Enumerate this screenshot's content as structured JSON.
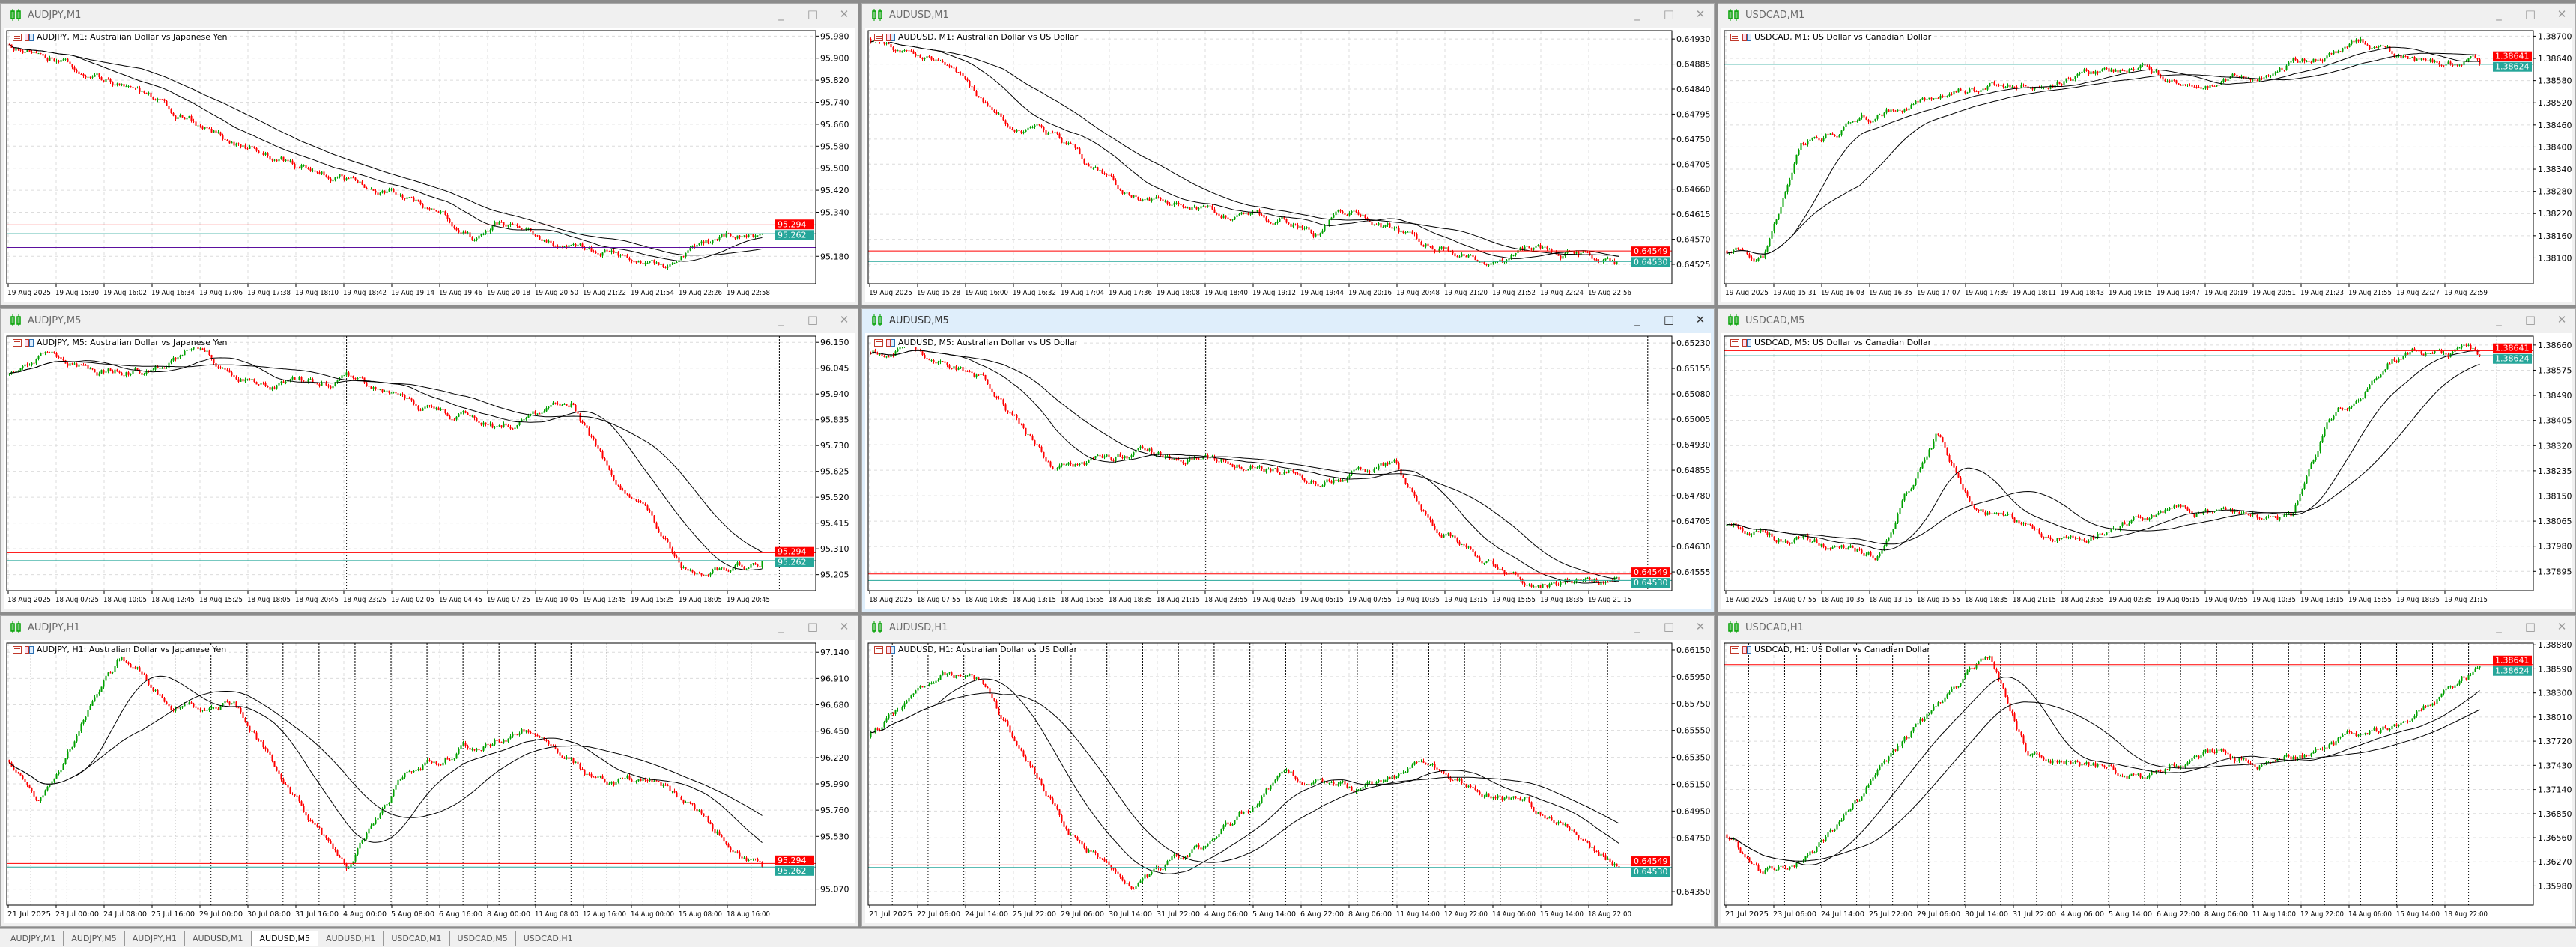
{
  "colors": {
    "bull": "#00a000",
    "bear": "#ff0000",
    "ask_line": "#ff0000",
    "bid_line": "#26a69a",
    "ma": "#000000",
    "grid": "#dcdcdc",
    "extra_line": "#5b0f9e"
  },
  "window_buttons": {
    "minimize": "_",
    "maximize": "□",
    "close": "✕"
  },
  "tabs": {
    "active": 4,
    "items": [
      {
        "label": "AUDJPY,M1"
      },
      {
        "label": "AUDJPY,M5"
      },
      {
        "label": "AUDJPY,H1"
      },
      {
        "label": "AUDUSD,M1"
      },
      {
        "label": "AUDUSD,M5"
      },
      {
        "label": "AUDUSD,H1"
      },
      {
        "label": "USDCAD,M1"
      },
      {
        "label": "USDCAD,M5"
      },
      {
        "label": "USDCAD,H1"
      }
    ]
  },
  "chart_data": [
    {
      "type": "candlestick",
      "window_title": "AUDJPY,M1",
      "header": "AUDJPY, M1:  Australian Dollar vs Japanese Yen",
      "digits": 3,
      "ylim": [
        95.08,
        96.0
      ],
      "ticks": [
        95.98,
        95.9,
        95.82,
        95.74,
        95.66,
        95.58,
        95.5,
        95.42,
        95.34,
        95.18
      ],
      "ask": 95.294,
      "bid": 95.262,
      "ask_label": "95.294",
      "bid_label": "95.262",
      "extra_line": 95.212,
      "time_labels": [
        "19 Aug 2025",
        "19 Aug 15:30",
        "19 Aug 16:02",
        "19 Aug 16:34",
        "19 Aug 17:06",
        "19 Aug 17:38",
        "19 Aug 18:10",
        "19 Aug 18:42",
        "19 Aug 19:14",
        "19 Aug 19:46",
        "19 Aug 20:18",
        "19 Aug 20:50",
        "19 Aug 21:22",
        "19 Aug 21:54",
        "19 Aug 22:26",
        "19 Aug 22:58"
      ],
      "separators": [],
      "path": [
        [
          0,
          95.95
        ],
        [
          0.05,
          95.92
        ],
        [
          0.15,
          95.8
        ],
        [
          0.28,
          95.62
        ],
        [
          0.4,
          95.5
        ],
        [
          0.5,
          95.42
        ],
        [
          0.58,
          95.32
        ],
        [
          0.62,
          95.25
        ],
        [
          0.65,
          95.29
        ],
        [
          0.75,
          95.2
        ],
        [
          0.83,
          95.18
        ],
        [
          0.87,
          95.15
        ],
        [
          0.92,
          95.21
        ],
        [
          0.97,
          95.27
        ],
        [
          1,
          95.26
        ]
      ]
    },
    {
      "type": "candlestick",
      "window_title": "AUDUSD,M1",
      "header": "AUDUSD, M1:  Australian Dollar vs US Dollar",
      "digits": 5,
      "ylim": [
        0.6449,
        0.64945
      ],
      "ticks": [
        0.6493,
        0.64885,
        0.6484,
        0.64795,
        0.6475,
        0.64705,
        0.6466,
        0.64615,
        0.6457,
        0.64525
      ],
      "ask": 0.64549,
      "bid": 0.6453,
      "ask_label": "0.64549",
      "bid_label": "0.64530",
      "time_labels": [
        "19 Aug 2025",
        "19 Aug 15:28",
        "19 Aug 16:00",
        "19 Aug 16:32",
        "19 Aug 17:04",
        "19 Aug 17:36",
        "19 Aug 18:08",
        "19 Aug 18:40",
        "19 Aug 19:12",
        "19 Aug 19:44",
        "19 Aug 20:16",
        "19 Aug 20:48",
        "19 Aug 21:20",
        "19 Aug 21:52",
        "19 Aug 22:24",
        "19 Aug 22:56"
      ],
      "separators": [],
      "path": [
        [
          0,
          0.6493
        ],
        [
          0.08,
          0.649
        ],
        [
          0.18,
          0.6478
        ],
        [
          0.25,
          0.6475
        ],
        [
          0.35,
          0.6465
        ],
        [
          0.45,
          0.6462
        ],
        [
          0.55,
          0.646
        ],
        [
          0.6,
          0.6458
        ],
        [
          0.63,
          0.6462
        ],
        [
          0.75,
          0.6456
        ],
        [
          0.83,
          0.6453
        ],
        [
          0.88,
          0.6455
        ],
        [
          1,
          0.6453
        ]
      ]
    },
    {
      "type": "candlestick",
      "window_title": "USDCAD,M1",
      "header": "USDCAD, M1:  US Dollar vs Canadian Dollar",
      "digits": 5,
      "ylim": [
        1.3803,
        1.38715
      ],
      "ticks": [
        1.387,
        1.3864,
        1.3858,
        1.3852,
        1.3846,
        1.384,
        1.3834,
        1.3828,
        1.3822,
        1.3816,
        1.381
      ],
      "ask": 1.38641,
      "bid": 1.38624,
      "ask_label": "1.38641",
      "bid_label": "1.38624",
      "time_labels": [
        "19 Aug 2025",
        "19 Aug 15:31",
        "19 Aug 16:03",
        "19 Aug 16:35",
        "19 Aug 17:07",
        "19 Aug 17:39",
        "19 Aug 18:11",
        "19 Aug 18:43",
        "19 Aug 19:15",
        "19 Aug 19:47",
        "19 Aug 20:19",
        "19 Aug 20:51",
        "19 Aug 21:23",
        "19 Aug 21:55",
        "19 Aug 22:27",
        "19 Aug 22:59"
      ],
      "separators": [],
      "path": [
        [
          0,
          1.3812
        ],
        [
          0.05,
          1.381
        ],
        [
          0.1,
          1.384
        ],
        [
          0.15,
          1.3845
        ],
        [
          0.3,
          1.3855
        ],
        [
          0.45,
          1.3858
        ],
        [
          0.55,
          1.3862
        ],
        [
          0.62,
          1.3855
        ],
        [
          0.7,
          1.386
        ],
        [
          0.85,
          1.3868
        ],
        [
          0.9,
          1.3863
        ],
        [
          1,
          1.3863
        ]
      ]
    },
    {
      "type": "candlestick",
      "window_title": "AUDJPY,M5",
      "header": "AUDJPY, M5:  Australian Dollar vs Japanese Yen",
      "digits": 3,
      "ylim": [
        95.14,
        96.175
      ],
      "ticks": [
        96.15,
        96.045,
        95.94,
        95.835,
        95.73,
        95.625,
        95.52,
        95.415,
        95.31,
        95.205
      ],
      "ask": 95.294,
      "bid": 95.262,
      "ask_label": "95.294",
      "bid_label": "95.262",
      "time_labels": [
        "18 Aug 2025",
        "18 Aug 07:25",
        "18 Aug 10:05",
        "18 Aug 12:45",
        "18 Aug 15:25",
        "18 Aug 18:05",
        "18 Aug 20:45",
        "18 Aug 23:25",
        "19 Aug 02:05",
        "19 Aug 04:45",
        "19 Aug 07:25",
        "19 Aug 10:05",
        "19 Aug 12:45",
        "19 Aug 15:25",
        "19 Aug 18:05",
        "19 Aug 20:45"
      ],
      "separators": [
        0.42,
        0.955
      ],
      "path": [
        [
          0,
          96.02
        ],
        [
          0.05,
          96.1
        ],
        [
          0.12,
          96.04
        ],
        [
          0.2,
          96.04
        ],
        [
          0.25,
          96.12
        ],
        [
          0.35,
          95.95
        ],
        [
          0.45,
          96.0
        ],
        [
          0.55,
          95.88
        ],
        [
          0.62,
          95.84
        ],
        [
          0.65,
          95.8
        ],
        [
          0.75,
          95.9
        ],
        [
          0.8,
          95.6
        ],
        [
          0.87,
          95.35
        ],
        [
          0.9,
          95.22
        ],
        [
          1,
          95.27
        ]
      ]
    },
    {
      "type": "candlestick",
      "window_title": "AUDUSD,M5",
      "header": "AUDUSD, M5:  Australian Dollar vs US Dollar",
      "digits": 5,
      "active": true,
      "ylim": [
        0.645,
        0.6525
      ],
      "ticks": [
        0.6523,
        0.65155,
        0.6508,
        0.65005,
        0.6493,
        0.64855,
        0.6478,
        0.64705,
        0.6463,
        0.64555
      ],
      "ask": 0.64549,
      "bid": 0.6453,
      "ask_label": "0.64549",
      "bid_label": "0.64530",
      "time_labels": [
        "18 Aug 2025",
        "18 Aug 07:55",
        "18 Aug 10:35",
        "18 Aug 13:15",
        "18 Aug 15:55",
        "18 Aug 18:35",
        "18 Aug 21:15",
        "18 Aug 23:55",
        "19 Aug 02:35",
        "19 Aug 05:15",
        "19 Aug 07:55",
        "19 Aug 10:35",
        "19 Aug 13:15",
        "19 Aug 15:55",
        "19 Aug 18:35",
        "19 Aug 21:15"
      ],
      "separators": [
        0.42,
        0.97
      ],
      "path": [
        [
          0,
          0.652
        ],
        [
          0.05,
          0.6522
        ],
        [
          0.15,
          0.6512
        ],
        [
          0.25,
          0.6485
        ],
        [
          0.35,
          0.649
        ],
        [
          0.5,
          0.6488
        ],
        [
          0.6,
          0.6482
        ],
        [
          0.7,
          0.6488
        ],
        [
          0.75,
          0.647
        ],
        [
          0.82,
          0.6458
        ],
        [
          0.88,
          0.6452
        ],
        [
          1,
          0.6453
        ]
      ]
    },
    {
      "type": "candlestick",
      "window_title": "USDCAD,M5",
      "header": "USDCAD, M5:  US Dollar vs Canadian Dollar",
      "digits": 5,
      "ylim": [
        1.3783,
        1.3869
      ],
      "ticks": [
        1.3866,
        1.38575,
        1.3849,
        1.38405,
        1.3832,
        1.38235,
        1.3815,
        1.38065,
        1.3798,
        1.37895
      ],
      "ask": 1.38641,
      "bid": 1.38624,
      "ask_label": "1.38641",
      "bid_label": "1.38624",
      "time_labels": [
        "18 Aug 2025",
        "18 Aug 07:55",
        "18 Aug 10:35",
        "18 Aug 13:15",
        "18 Aug 15:55",
        "18 Aug 18:35",
        "18 Aug 21:15",
        "18 Aug 23:55",
        "19 Aug 02:35",
        "19 Aug 05:15",
        "19 Aug 07:55",
        "19 Aug 10:35",
        "19 Aug 13:15",
        "19 Aug 15:55",
        "19 Aug 18:35",
        "19 Aug 21:15"
      ],
      "separators": [
        0.42,
        0.955
      ],
      "path": [
        [
          0,
          1.3805
        ],
        [
          0.1,
          1.38
        ],
        [
          0.2,
          1.3795
        ],
        [
          0.28,
          1.3835
        ],
        [
          0.33,
          1.381
        ],
        [
          0.45,
          1.38
        ],
        [
          0.6,
          1.381
        ],
        [
          0.75,
          1.3806
        ],
        [
          0.8,
          1.384
        ],
        [
          0.88,
          1.386
        ],
        [
          0.92,
          1.3866
        ],
        [
          1,
          1.3862
        ]
      ]
    },
    {
      "type": "candlestick",
      "window_title": "AUDJPY,H1",
      "header": "AUDJPY, H1:  Australian Dollar vs Japanese Yen",
      "digits": 3,
      "ylim": [
        94.93,
        97.22
      ],
      "ticks": [
        97.14,
        96.91,
        96.68,
        96.45,
        96.22,
        95.99,
        95.76,
        95.53,
        95.07
      ],
      "ask": 95.294,
      "bid": 95.262,
      "ask_label": "95.294",
      "bid_label": "95.262",
      "time_labels": [
        "21 Jul 2025",
        "23 Jul 00:00",
        "24 Jul 08:00",
        "25 Jul 16:00",
        "29 Jul 00:00",
        "30 Jul 08:00",
        "31 Jul 16:00",
        "4 Aug 00:00",
        "5 Aug 08:00",
        "6 Aug 16:00",
        "8 Aug 00:00",
        "11 Aug 08:00",
        "12 Aug 16:00",
        "14 Aug 00:00",
        "15 Aug 08:00",
        "18 Aug 16:00"
      ],
      "separators": "daily",
      "path": [
        [
          0,
          96.2
        ],
        [
          0.04,
          95.8
        ],
        [
          0.12,
          96.8
        ],
        [
          0.15,
          97.1
        ],
        [
          0.22,
          96.7
        ],
        [
          0.3,
          96.7
        ],
        [
          0.4,
          95.7
        ],
        [
          0.45,
          95.2
        ],
        [
          0.52,
          96.0
        ],
        [
          0.6,
          96.3
        ],
        [
          0.7,
          96.5
        ],
        [
          0.78,
          96.0
        ],
        [
          0.85,
          96.0
        ],
        [
          0.9,
          95.8
        ],
        [
          1,
          95.26
        ]
      ]
    },
    {
      "type": "candlestick",
      "window_title": "AUDUSD,H1",
      "header": "AUDUSD, H1:  Australian Dollar vs US Dollar",
      "digits": 5,
      "ylim": [
        0.6425,
        0.662
      ],
      "ticks": [
        0.6615,
        0.6595,
        0.6575,
        0.6555,
        0.6535,
        0.6515,
        0.6495,
        0.6475,
        0.6435
      ],
      "ask": 0.64549,
      "bid": 0.6453,
      "ask_label": "0.64549",
      "bid_label": "0.64530",
      "time_labels": [
        "21 Jul 2025",
        "22 Jul 06:00",
        "24 Jul 14:00",
        "25 Jul 22:00",
        "29 Jul 06:00",
        "30 Jul 14:00",
        "31 Jul 22:00",
        "4 Aug 06:00",
        "5 Aug 14:00",
        "6 Aug 22:00",
        "8 Aug 06:00",
        "11 Aug 14:00",
        "12 Aug 22:00",
        "14 Aug 06:00",
        "15 Aug 14:00",
        "18 Aug 22:00"
      ],
      "separators": "daily",
      "path": [
        [
          0,
          0.655
        ],
        [
          0.1,
          0.66
        ],
        [
          0.15,
          0.659
        ],
        [
          0.27,
          0.648
        ],
        [
          0.35,
          0.644
        ],
        [
          0.45,
          0.647
        ],
        [
          0.55,
          0.652
        ],
        [
          0.65,
          0.651
        ],
        [
          0.75,
          0.653
        ],
        [
          0.82,
          0.651
        ],
        [
          0.88,
          0.65
        ],
        [
          1,
          0.6453
        ]
      ]
    },
    {
      "type": "candlestick",
      "window_title": "USDCAD,H1",
      "header": "USDCAD, H1:  US Dollar vs Canadian Dollar",
      "digits": 5,
      "ylim": [
        1.3575,
        1.389
      ],
      "ticks": [
        1.3888,
        1.3859,
        1.383,
        1.3801,
        1.3772,
        1.3743,
        1.3714,
        1.3685,
        1.3656,
        1.3627,
        1.3598
      ],
      "ask": 1.38641,
      "bid": 1.38624,
      "ask_label": "1.38641",
      "bid_label": "1.38624",
      "time_labels": [
        "21 Jul 2025",
        "23 Jul 06:00",
        "24 Jul 14:00",
        "25 Jul 22:00",
        "29 Jul 06:00",
        "30 Jul 14:00",
        "31 Jul 22:00",
        "4 Aug 06:00",
        "5 Aug 14:00",
        "6 Aug 22:00",
        "8 Aug 06:00",
        "11 Aug 14:00",
        "12 Aug 22:00",
        "14 Aug 06:00",
        "15 Aug 14:00",
        "18 Aug 22:00"
      ],
      "separators": "daily",
      "path": [
        [
          0,
          1.366
        ],
        [
          0.05,
          1.361
        ],
        [
          0.12,
          1.364
        ],
        [
          0.25,
          1.378
        ],
        [
          0.35,
          1.388
        ],
        [
          0.4,
          1.376
        ],
        [
          0.55,
          1.373
        ],
        [
          0.65,
          1.376
        ],
        [
          0.72,
          1.374
        ],
        [
          0.85,
          1.378
        ],
        [
          0.9,
          1.379
        ],
        [
          1,
          1.3862
        ]
      ]
    }
  ]
}
